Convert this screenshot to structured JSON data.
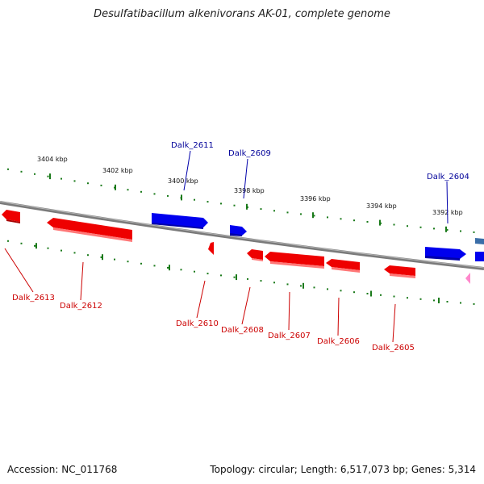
{
  "title": "Desulfatibacillum alkenivorans AK-01, complete genome",
  "footer": {
    "accession": "Accession: NC_011768",
    "stats": "Topology: circular; Length: 6,517,073 bp; Genes: 5,314"
  },
  "colors": {
    "forward_gene": "#0000ee",
    "reverse_gene": "#ee0000",
    "backbone": "#7a7a7a",
    "tick": "#1a7a1a",
    "forward_label": "#000099",
    "reverse_label": "#cc0000"
  },
  "scale_labels": [
    "3404 kbp",
    "3402 kbp",
    "3400 kbp",
    "3398 kbp",
    "3396 kbp",
    "3394 kbp",
    "3392 kbp"
  ],
  "forward_gene_labels": [
    "Dalk_2611",
    "Dalk_2609",
    "Dalk_2604"
  ],
  "reverse_gene_labels": [
    "Dalk_2613",
    "Dalk_2612",
    "Dalk_2610",
    "Dalk_2608",
    "Dalk_2607",
    "Dalk_2606",
    "Dalk_2605"
  ]
}
